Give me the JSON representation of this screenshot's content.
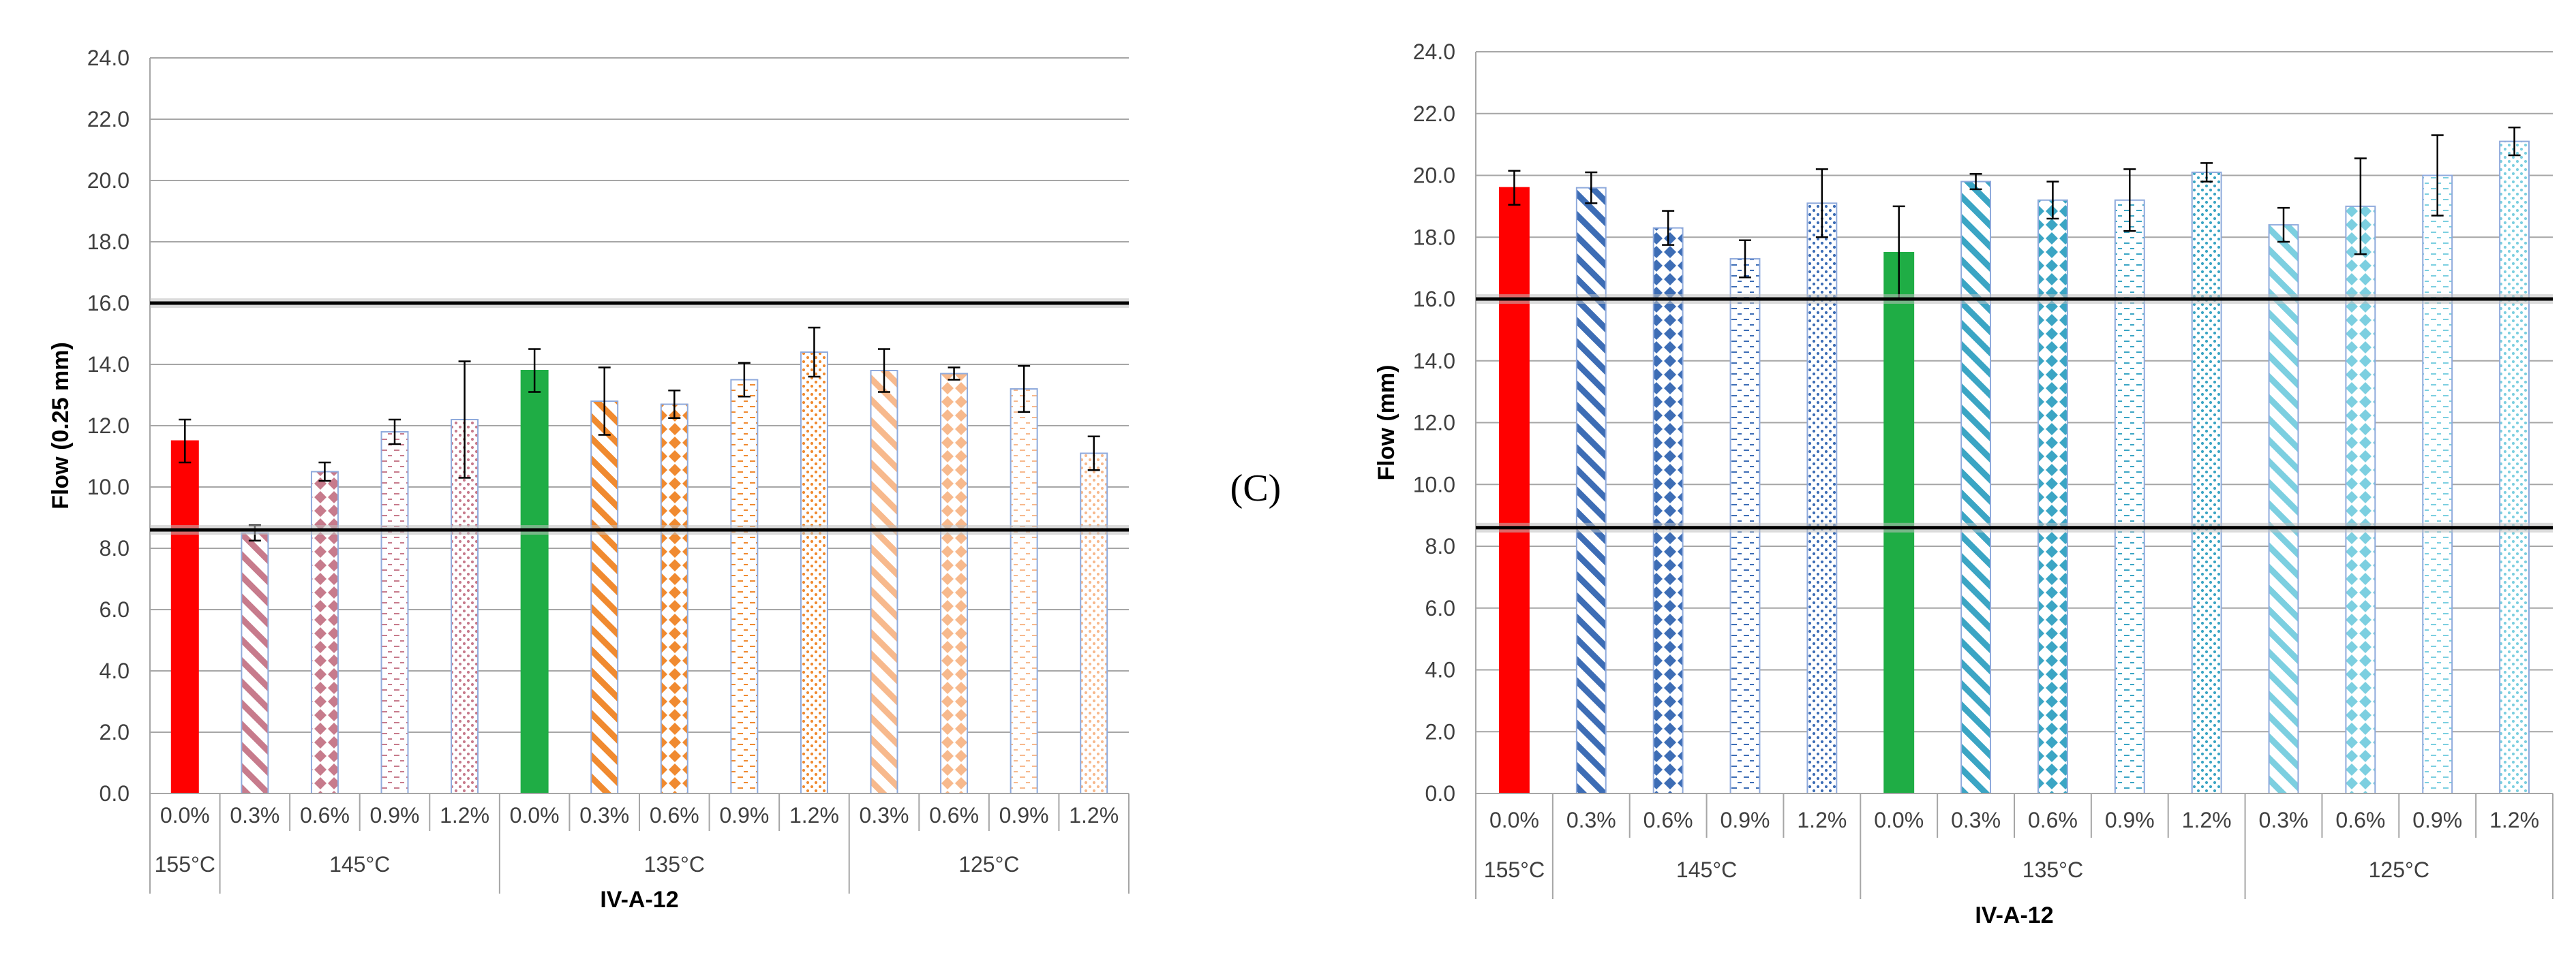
{
  "panel_label": "(C)",
  "chart_data": [
    {
      "type": "bar",
      "title": "",
      "xlabel": "IV-A-12",
      "ylabel": "Flow  (0.25 mm)",
      "ylim": [
        0,
        24
      ],
      "ytick_labels": [
        "0.0",
        "2.0",
        "4.0",
        "6.0",
        "8.0",
        "10.0",
        "12.0",
        "14.0",
        "16.0",
        "18.0",
        "20.0",
        "22.0",
        "24.0"
      ],
      "categories": [
        "0.0%",
        "0.3%",
        "0.6%",
        "0.9%",
        "1.2%",
        "0.0%",
        "0.3%",
        "0.6%",
        "0.9%",
        "1.2%",
        "0.3%",
        "0.6%",
        "0.9%",
        "1.2%"
      ],
      "groups": [
        {
          "label": "155°C",
          "count": 1
        },
        {
          "label": "145°C",
          "count": 4
        },
        {
          "label": "135°C",
          "count": 5
        },
        {
          "label": "125°C",
          "count": 4
        }
      ],
      "values": [
        11.5,
        8.5,
        10.5,
        11.8,
        12.2,
        13.8,
        12.8,
        12.7,
        13.5,
        14.4,
        13.8,
        13.7,
        13.2,
        11.1
      ],
      "errors": [
        0.7,
        0.25,
        0.3,
        0.4,
        1.9,
        0.7,
        1.1,
        0.45,
        0.55,
        0.8,
        0.7,
        0.2,
        0.75,
        0.55
      ],
      "styles": [
        "solid",
        "diag",
        "diamond",
        "dash",
        "dots",
        "solid",
        "diag",
        "diamond",
        "dash",
        "dots",
        "diag",
        "diamond",
        "dash",
        "dots"
      ],
      "colors": [
        "#ff0000",
        "#c77b8c",
        "#c77b8c",
        "#c77b8c",
        "#c77b8c",
        "#1fad45",
        "#f08a30",
        "#f08a30",
        "#f08a30",
        "#f08a30",
        "#f7b98d",
        "#f7b98d",
        "#f7b98d",
        "#f7b98d"
      ],
      "reference_lines": [
        16.0,
        8.6
      ]
    },
    {
      "type": "bar",
      "title": "",
      "xlabel": "IV-A-12",
      "ylabel": "Flow (mm)",
      "ylim": [
        0,
        24
      ],
      "ytick_labels": [
        "0.0",
        "2.0",
        "4.0",
        "6.0",
        "8.0",
        "10.0",
        "12.0",
        "14.0",
        "16.0",
        "18.0",
        "20.0",
        "22.0",
        "24.0"
      ],
      "categories": [
        "0.0%",
        "0.3%",
        "0.6%",
        "0.9%",
        "1.2%",
        "0.0%",
        "0.3%",
        "0.6%",
        "0.9%",
        "1.2%",
        "0.3%",
        "0.6%",
        "0.9%",
        "1.2%"
      ],
      "groups": [
        {
          "label": "155°C",
          "count": 1
        },
        {
          "label": "145°C",
          "count": 4
        },
        {
          "label": "135°C",
          "count": 5
        },
        {
          "label": "125°C",
          "count": 4
        }
      ],
      "values": [
        19.6,
        19.6,
        18.3,
        17.3,
        19.1,
        17.5,
        19.8,
        19.2,
        19.2,
        20.1,
        18.4,
        19.0,
        20.0,
        21.1
      ],
      "errors": [
        0.55,
        0.5,
        0.55,
        0.6,
        1.1,
        1.5,
        0.25,
        0.6,
        1.0,
        0.3,
        0.55,
        1.55,
        1.3,
        0.45
      ],
      "styles": [
        "solid",
        "diag",
        "diamond",
        "dash",
        "dots",
        "solid",
        "diag",
        "diamond",
        "dash",
        "dots",
        "diag",
        "diamond",
        "dash",
        "dots"
      ],
      "colors": [
        "#ff0000",
        "#3d6db5",
        "#3d6db5",
        "#3d6db5",
        "#3d6db5",
        "#1fad45",
        "#3ba5c4",
        "#3ba5c4",
        "#3ba5c4",
        "#3ba5c4",
        "#7ccfe0",
        "#7ccfe0",
        "#7ccfe0",
        "#7ccfe0"
      ],
      "reference_lines": [
        16.0,
        8.6
      ]
    }
  ]
}
